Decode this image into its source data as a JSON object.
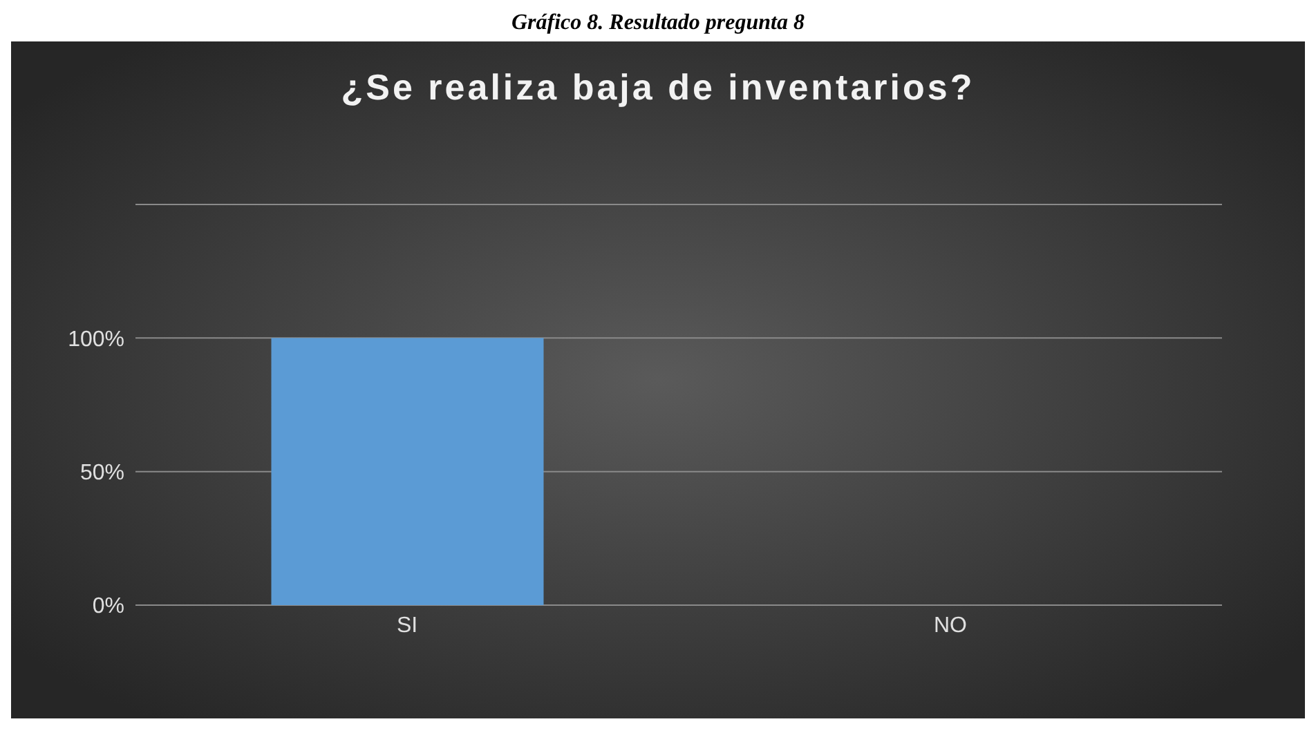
{
  "chart_data": {
    "type": "bar",
    "title": "¿Se realiza baja de inventarios?",
    "annotations": [
      "Gráfico 8. Resultado pregunta 8"
    ],
    "categories": [
      "SI",
      "NO"
    ],
    "values": [
      100,
      0
    ],
    "colors": [
      "#5b9bd5",
      "#1f2d3d"
    ],
    "ylim": [
      0,
      150
    ],
    "yticks": [
      {
        "value": 0,
        "label": "0%"
      },
      {
        "value": 50,
        "label": "50%"
      },
      {
        "value": 100,
        "label": "100%"
      },
      {
        "value": 150,
        "label": null
      }
    ],
    "grid": "y"
  }
}
